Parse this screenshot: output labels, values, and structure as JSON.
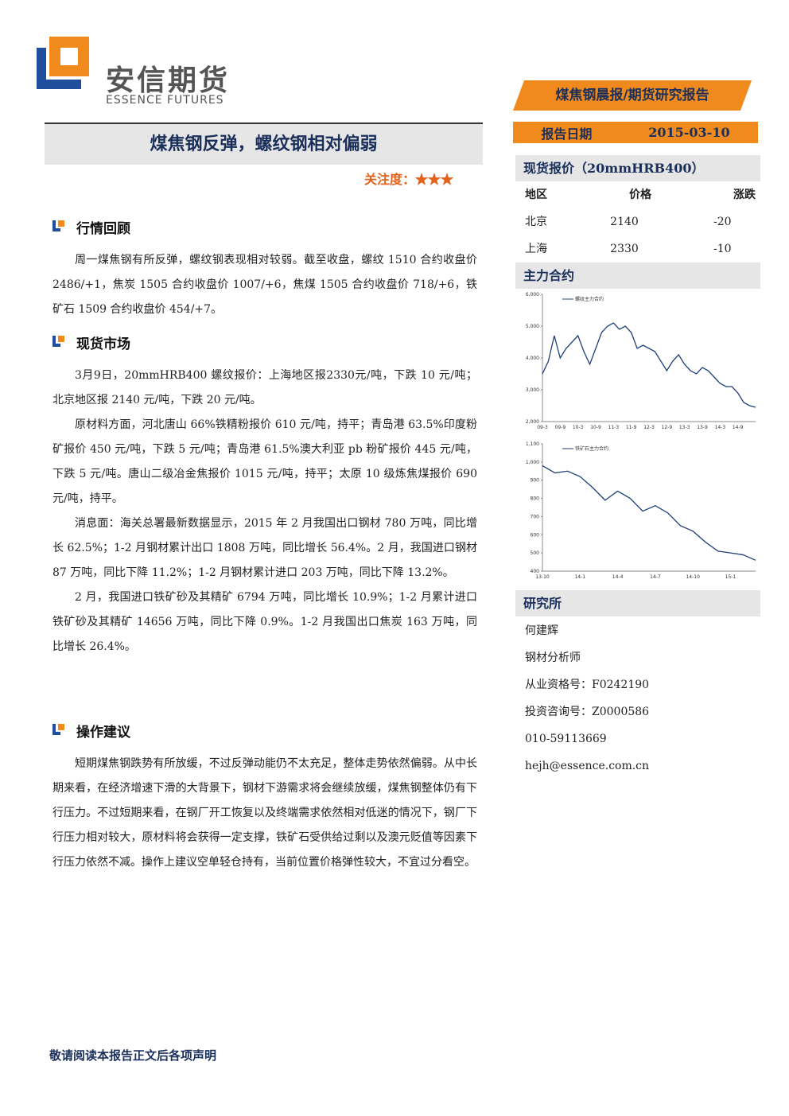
{
  "header": {
    "logo_cn": "安信期货",
    "logo_en": "ESSENCE FUTURES",
    "banner": "煤焦钢晨报/期货研究报告"
  },
  "title": "煤焦钢反弹，螺纹钢相对偏弱",
  "attention": "关注度：★★★",
  "report_date": {
    "label": "报告日期",
    "value": "2015-03-10"
  },
  "sections": [
    {
      "heading": "行情回顾",
      "paragraphs": [
        "周一煤焦钢有所反弹，螺纹钢表现相对较弱。截至收盘，螺纹 1510 合约收盘价 2486/+1，焦炭 1505 合约收盘价 1007/+6，焦煤 1505 合约收盘价 718/+6，铁矿石 1509 合约收盘价 454/+7。"
      ]
    },
    {
      "heading": "现货市场",
      "paragraphs": [
        "3月9日，20mmHRB400 螺纹报价：上海地区报2330元/吨，下跌 10 元/吨；北京地区报 2140 元/吨，下跌 20 元/吨。",
        "原材料方面，河北唐山 66%铁精粉报价 610 元/吨，持平；青岛港 63.5%印度粉矿报价 450 元/吨，下跌 5 元/吨；青岛港 61.5%澳大利亚 pb 粉矿报价 445 元/吨，下跌 5 元/吨。唐山二级冶金焦报价 1015 元/吨，持平；太原 10 级炼焦煤报价 690 元/吨，持平。",
        "消息面：海关总署最新数据显示，2015 年 2 月我国出口钢材 780 万吨，同比增长 62.5%；1-2 月钢材累计出口 1808 万吨，同比增长 56.4%。2 月，我国进口钢材 87 万吨，同比下降 11.2%；1-2 月钢材累计进口 203 万吨，同比下降 13.2%。",
        "2 月，我国进口铁矿砂及其精矿 6794 万吨，同比增长 10.9%；1-2 月累计进口铁矿砂及其精矿 14656 万吨，同比下降 0.9%。1-2 月我国出口焦炭 163 万吨，同比增长 26.4%。"
      ]
    },
    {
      "heading": "操作建议",
      "paragraphs": [
        "短期煤焦钢跌势有所放缓，不过反弹动能仍不太充足，整体走势依然偏弱。从中长期来看，在经济增速下滑的大背景下，钢材下游需求将会继续放缓，煤焦钢整体仍有下行压力。不过短期来看，在钢厂开工恢复以及终端需求依然相对低迷的情况下，钢厂下行压力相对较大，原材料将会获得一定支撑，铁矿石受供给过剩以及澳元贬值等因素下行压力依然不减。操作上建议空单轻仓持有，当前位置价格弹性较大，不宜过分看空。"
      ]
    }
  ],
  "spot": {
    "title": "现货报价（20mmHRB400）",
    "headers": [
      "地区",
      "价格",
      "涨跌"
    ],
    "rows": [
      [
        "北京",
        2140,
        -20
      ],
      [
        "上海",
        2330,
        -10
      ]
    ]
  },
  "main_contract": "主力合约",
  "chart_data": [
    {
      "type": "line",
      "categories": [
        "09-3",
        null,
        null,
        "09-9",
        null,
        null,
        "10-3",
        null,
        null,
        "10-9",
        null,
        null,
        "11-3",
        null,
        null,
        "11-9",
        null,
        null,
        "12-3",
        null,
        null,
        "12-9",
        null,
        null,
        "13-3",
        null,
        null,
        "13-9",
        null,
        null,
        "14-3",
        null,
        null,
        "14-9",
        null,
        null,
        null
      ],
      "series": [
        {
          "name": "螺纹主力合约",
          "color": "#1f3f7a",
          "values": [
            3500,
            3900,
            4700,
            4000,
            4300,
            4500,
            4700,
            4200,
            3800,
            4300,
            4800,
            5000,
            5100,
            4900,
            5000,
            4800,
            4300,
            4400,
            4300,
            4200,
            3900,
            3600,
            3900,
            4100,
            3800,
            3600,
            3500,
            3700,
            3600,
            3400,
            3200,
            3100,
            3100,
            2900,
            2600,
            2500,
            2450
          ]
        }
      ],
      "ylim": [
        2000,
        6000
      ],
      "yticks": [
        {
          "value": 2000,
          "label": "2,000"
        },
        {
          "value": 3000,
          "label": "3,000"
        },
        {
          "value": 4000,
          "label": "4,000"
        },
        {
          "value": 5000,
          "label": "5,000"
        },
        {
          "value": 6000,
          "label": "6,000"
        }
      ]
    },
    {
      "type": "line",
      "categories": [
        "13-10",
        null,
        null,
        "14-1",
        null,
        null,
        "14-4",
        null,
        null,
        "14-7",
        null,
        null,
        "14-10",
        null,
        null,
        "15-1",
        null,
        null
      ],
      "series": [
        {
          "name": "铁矿石主力合约",
          "color": "#1f3f7a",
          "values": [
            980,
            940,
            950,
            920,
            860,
            790,
            840,
            800,
            730,
            760,
            720,
            650,
            620,
            560,
            510,
            500,
            490,
            460
          ]
        }
      ],
      "ylim": [
        400,
        1100
      ],
      "yticks": [
        400,
        500,
        600,
        700,
        800,
        900,
        {
          "value": 1000,
          "label": "1,000"
        },
        {
          "value": 1100,
          "label": "1,100"
        }
      ]
    }
  ],
  "research": {
    "title": "研究所",
    "lines": [
      "何建辉",
      "钢材分析师",
      "从业资格号：F0242190",
      "投资咨询号：Z0000586",
      "010-59113669",
      "hejh@essence.com.cn"
    ]
  },
  "footer": "敬请阅读本报告正文后各项声明"
}
